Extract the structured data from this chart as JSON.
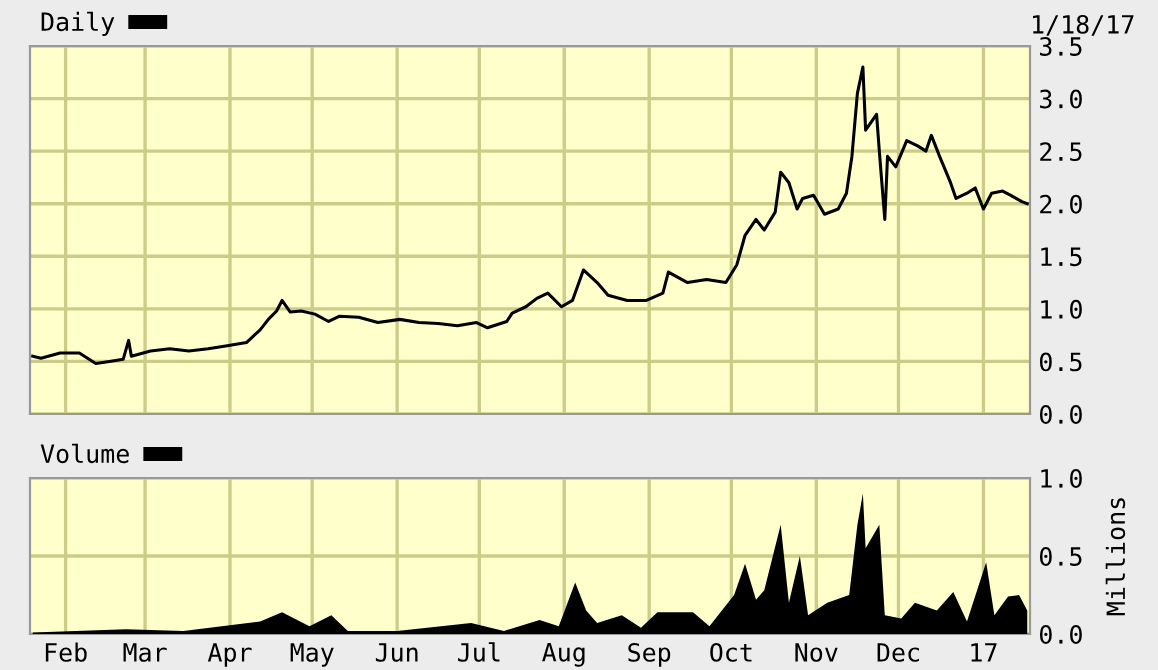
{
  "chart_data": [
    {
      "type": "line",
      "annotations": [
        "1/18/17"
      ],
      "legend": "top left",
      "grid": true,
      "tick_labels": "y",
      "marker": "none",
      "line_style": "solid",
      "xlim": [
        "2016-01-19",
        "2017-01-18"
      ],
      "xticks": [
        {
          "value": "2016-02-01",
          "label": null
        },
        {
          "value": "2016-03-01",
          "label": null
        },
        {
          "value": "2016-04-01",
          "label": null
        },
        {
          "value": "2016-05-01",
          "label": null
        },
        {
          "value": "2016-06-01",
          "label": null
        },
        {
          "value": "2016-07-01",
          "label": null
        },
        {
          "value": "2016-08-01",
          "label": null
        },
        {
          "value": "2016-09-01",
          "label": null
        },
        {
          "value": "2016-10-01",
          "label": null
        },
        {
          "value": "2016-11-01",
          "label": null
        },
        {
          "value": "2016-12-01",
          "label": null
        },
        {
          "value": "2017-01-01",
          "label": null
        }
      ],
      "ylim": [
        0,
        3.5
      ],
      "yticks": [
        {
          "value": 0,
          "label": "0.0"
        },
        {
          "value": 0.5,
          "label": "0.5"
        },
        {
          "value": 1,
          "label": "1.0"
        },
        {
          "value": 1.5,
          "label": "1.5"
        },
        {
          "value": 2,
          "label": "2.0"
        },
        {
          "value": 2.5,
          "label": "2.5"
        },
        {
          "value": 3,
          "label": "3.0"
        },
        {
          "value": 3.5,
          "label": "3.5"
        }
      ],
      "x": [
        "2016-01-20",
        "2016-01-23",
        "2016-01-30",
        "2016-02-06",
        "2016-02-12",
        "2016-02-17",
        "2016-02-22",
        "2016-02-24",
        "2016-02-25",
        "2016-03-03",
        "2016-03-10",
        "2016-03-17",
        "2016-03-24",
        "2016-03-31",
        "2016-04-07",
        "2016-04-12",
        "2016-04-15",
        "2016-04-18",
        "2016-04-20",
        "2016-04-23",
        "2016-04-27",
        "2016-05-02",
        "2016-05-07",
        "2016-05-11",
        "2016-05-18",
        "2016-05-25",
        "2016-06-02",
        "2016-06-09",
        "2016-06-16",
        "2016-06-23",
        "2016-06-30",
        "2016-07-04",
        "2016-07-11",
        "2016-07-13",
        "2016-07-18",
        "2016-07-22",
        "2016-07-26",
        "2016-07-31",
        "2016-08-04",
        "2016-08-08",
        "2016-08-13",
        "2016-08-17",
        "2016-08-24",
        "2016-08-31",
        "2016-09-06",
        "2016-09-08",
        "2016-09-15",
        "2016-09-22",
        "2016-09-29",
        "2016-10-03",
        "2016-10-06",
        "2016-10-10",
        "2016-10-13",
        "2016-10-17",
        "2016-10-19",
        "2016-10-22",
        "2016-10-25",
        "2016-10-27",
        "2016-10-31",
        "2016-11-04",
        "2016-11-09",
        "2016-11-12",
        "2016-11-14",
        "2016-11-16",
        "2016-11-18",
        "2016-11-19",
        "2016-11-23",
        "2016-11-24",
        "2016-11-26",
        "2016-11-27",
        "2016-11-30",
        "2016-12-04",
        "2016-12-08",
        "2016-12-11",
        "2016-12-13",
        "2016-12-16",
        "2016-12-20",
        "2016-12-22",
        "2016-12-26",
        "2016-12-29",
        "2017-01-01",
        "2017-01-04",
        "2017-01-08",
        "2017-01-11",
        "2017-01-15",
        "2017-01-17"
      ],
      "series": [
        {
          "name": "Daily",
          "color": "#000000",
          "values": [
            0.55,
            0.53,
            0.58,
            0.58,
            0.48,
            0.5,
            0.52,
            0.7,
            0.55,
            0.6,
            0.62,
            0.6,
            0.62,
            0.65,
            0.68,
            0.8,
            0.9,
            0.98,
            1.08,
            0.97,
            0.98,
            0.95,
            0.88,
            0.93,
            0.92,
            0.87,
            0.9,
            0.87,
            0.86,
            0.84,
            0.87,
            0.82,
            0.88,
            0.96,
            1.02,
            1.1,
            1.15,
            1.02,
            1.08,
            1.37,
            1.25,
            1.13,
            1.08,
            1.08,
            1.15,
            1.35,
            1.25,
            1.28,
            1.25,
            1.42,
            1.7,
            1.85,
            1.75,
            1.92,
            2.3,
            2.2,
            1.95,
            2.05,
            2.08,
            1.9,
            1.95,
            2.1,
            2.45,
            3.05,
            3.3,
            2.7,
            2.85,
            2.5,
            1.85,
            2.45,
            2.35,
            2.6,
            2.55,
            2.5,
            2.65,
            2.45,
            2.2,
            2.05,
            2.1,
            2.15,
            1.95,
            2.1,
            2.12,
            2.08,
            2.02,
            2.0
          ]
        }
      ]
    },
    {
      "type": "area",
      "legend": "top left",
      "grid": true,
      "ylabel": "Millions",
      "xlim": [
        "2016-01-19",
        "2017-01-18"
      ],
      "xticks": [
        {
          "value": "2016-02-01",
          "label": "Feb"
        },
        {
          "value": "2016-03-01",
          "label": "Mar"
        },
        {
          "value": "2016-04-01",
          "label": "Apr"
        },
        {
          "value": "2016-05-01",
          "label": "May"
        },
        {
          "value": "2016-06-01",
          "label": "Jun"
        },
        {
          "value": "2016-07-01",
          "label": "Jul"
        },
        {
          "value": "2016-08-01",
          "label": "Aug"
        },
        {
          "value": "2016-09-01",
          "label": "Sep"
        },
        {
          "value": "2016-10-01",
          "label": "Oct"
        },
        {
          "value": "2016-11-01",
          "label": "Nov"
        },
        {
          "value": "2016-12-01",
          "label": "Dec"
        },
        {
          "value": "2017-01-01",
          "label": "17"
        }
      ],
      "ylim": [
        0,
        1
      ],
      "yticks": [
        {
          "value": 0,
          "label": "0.0"
        },
        {
          "value": 0.5,
          "label": "0.5"
        },
        {
          "value": 1,
          "label": "1.0"
        }
      ],
      "x": [
        "2016-01-20",
        "2016-02-23",
        "2016-03-15",
        "2016-04-12",
        "2016-04-20",
        "2016-04-30",
        "2016-05-08",
        "2016-05-14",
        "2016-06-01",
        "2016-06-28",
        "2016-07-10",
        "2016-07-23",
        "2016-07-30",
        "2016-08-05",
        "2016-08-09",
        "2016-08-13",
        "2016-08-22",
        "2016-08-29",
        "2016-09-04",
        "2016-09-17",
        "2016-09-23",
        "2016-10-02",
        "2016-10-06",
        "2016-10-10",
        "2016-10-13",
        "2016-10-19",
        "2016-10-22",
        "2016-10-26",
        "2016-10-29",
        "2016-11-05",
        "2016-11-13",
        "2016-11-16",
        "2016-11-18",
        "2016-11-19",
        "2016-11-24",
        "2016-11-26",
        "2016-12-02",
        "2016-12-07",
        "2016-12-15",
        "2016-12-21",
        "2016-12-26",
        "2017-01-02",
        "2017-01-05",
        "2017-01-10",
        "2017-01-14",
        "2017-01-17"
      ],
      "series": [
        {
          "name": "Volume",
          "color": "#000000",
          "values": [
            0.01,
            0.03,
            0.02,
            0.08,
            0.14,
            0.05,
            0.12,
            0.02,
            0.02,
            0.07,
            0.02,
            0.09,
            0.05,
            0.33,
            0.15,
            0.07,
            0.12,
            0.04,
            0.14,
            0.14,
            0.05,
            0.25,
            0.45,
            0.22,
            0.28,
            0.7,
            0.2,
            0.5,
            0.12,
            0.2,
            0.25,
            0.7,
            0.9,
            0.55,
            0.7,
            0.12,
            0.1,
            0.2,
            0.15,
            0.27,
            0.08,
            0.46,
            0.12,
            0.24,
            0.25,
            0.15
          ]
        }
      ]
    }
  ]
}
